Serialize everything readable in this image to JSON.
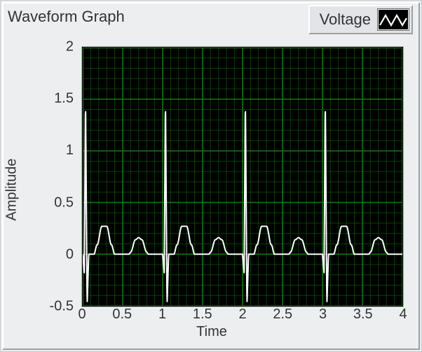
{
  "panel": {
    "background_color": "#eceef0",
    "border_light": "#ffffff",
    "border_dark": "#9da0a3"
  },
  "title": "Waveform Graph",
  "legend": {
    "label": "Voltage",
    "swatch_bg": "#000000",
    "line_color": "#ffffff"
  },
  "chart": {
    "type": "line",
    "plot_bg": "#000000",
    "grid_color_major": "#117a11",
    "grid_color_minor": "#0a3d0a",
    "line_color": "#ffffff",
    "line_width": 2,
    "x_axis": {
      "label": "Time",
      "min": 0,
      "max": 4,
      "tick_step": 0.5,
      "ticks": [
        "0",
        "0.5",
        "1",
        "1.5",
        "2",
        "2.5",
        "3",
        "3.5",
        "4"
      ],
      "minor_per_major": 5
    },
    "y_axis": {
      "label": "Amplitude",
      "min": -0.5,
      "max": 2,
      "tick_step": 0.5,
      "ticks": [
        "-0.5",
        "0",
        "0.5",
        "1",
        "1.5",
        "2"
      ],
      "minor_per_major": 5
    },
    "label_fontsize": 20,
    "tick_fontsize": 20,
    "data_comment": "ECG-like periodic waveform, period=1. Each period: small P bump, QRS spike (dip, tall peak to ~1.55, dip to ~-0.5), T bump.",
    "series": [
      {
        "name": "voltage",
        "period": 1.0,
        "cycles": 4,
        "segments": [
          {
            "t": 0.0,
            "v": 0.0
          },
          {
            "t": 0.02,
            "v": -0.18
          },
          {
            "t": 0.035,
            "v": 1.55
          },
          {
            "t": 0.055,
            "v": -0.5
          },
          {
            "t": 0.075,
            "v": 0.0
          },
          {
            "t": 0.14,
            "v": 0.0
          },
          {
            "t": 0.18,
            "v": 0.09
          },
          {
            "t": 0.24,
            "v": 0.27
          },
          {
            "t": 0.3,
            "v": 0.27
          },
          {
            "t": 0.36,
            "v": 0.09
          },
          {
            "t": 0.4,
            "v": 0.0
          },
          {
            "t": 0.58,
            "v": 0.0
          },
          {
            "t": 0.6,
            "v": 0.02
          },
          {
            "t": 0.66,
            "v": 0.14
          },
          {
            "t": 0.7,
            "v": 0.16
          },
          {
            "t": 0.74,
            "v": 0.14
          },
          {
            "t": 0.8,
            "v": 0.02
          },
          {
            "t": 0.82,
            "v": 0.0
          },
          {
            "t": 1.0,
            "v": 0.0
          }
        ]
      }
    ]
  }
}
